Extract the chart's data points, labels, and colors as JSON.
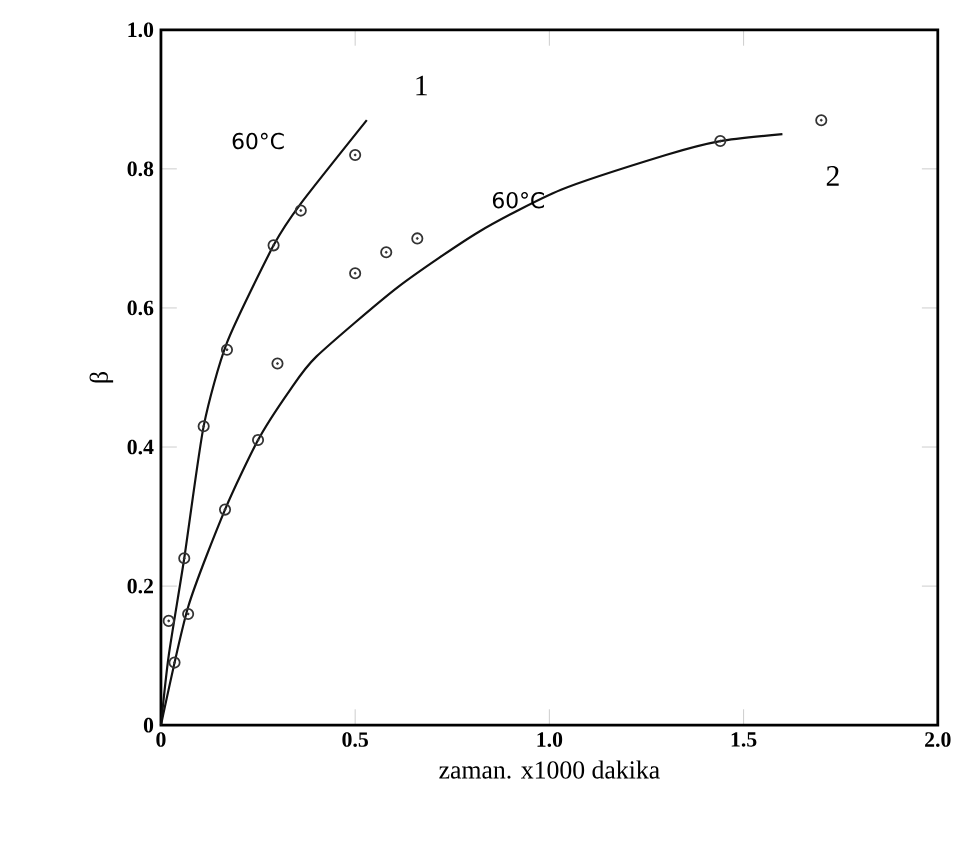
{
  "chart_data": {
    "type": "scatter",
    "xlabel": "zaman. x1000 dakika",
    "ylabel": "β",
    "xlim": [
      0,
      2
    ],
    "ylim": [
      0,
      1
    ],
    "xticks": [
      0,
      {
        "value": 0.5,
        "label": "0.5"
      },
      {
        "value": 1,
        "label": "1.0"
      },
      {
        "value": 1.5,
        "label": "1.5"
      },
      {
        "value": 2,
        "label": "2.0"
      }
    ],
    "yticks": [
      0,
      {
        "value": 0.2,
        "label": "0.2"
      },
      {
        "value": 0.4,
        "label": "0.4"
      },
      {
        "value": 0.6,
        "label": "0.6"
      },
      {
        "value": 0.8,
        "label": "0.8"
      },
      {
        "value": 1,
        "label": "1.0"
      }
    ],
    "grid": false,
    "series": [
      {
        "marker": "circle",
        "color": "#333333",
        "x": [
          0.02,
          0.035,
          0.06,
          0.11,
          0.17,
          0.29,
          0.36,
          0.5
        ],
        "values": [
          0.15,
          0.09,
          0.24,
          0.43,
          0.54,
          0.69,
          0.74,
          0.82
        ]
      },
      {
        "marker": "circle",
        "color": "#333333",
        "x": [
          0.07,
          0.165,
          0.25,
          0.3,
          0.5,
          0.58,
          0.66,
          1.44,
          1.7
        ],
        "values": [
          0.16,
          0.31,
          0.41,
          0.52,
          0.65,
          0.68,
          0.7,
          0.84,
          0.87
        ]
      },
      {
        "type": "line",
        "marker": "none",
        "color": "#111111",
        "x": [
          0,
          0.02,
          0.06,
          0.11,
          0.17,
          0.29,
          0.36,
          0.53
        ],
        "values": [
          0,
          0.1,
          0.24,
          0.43,
          0.55,
          0.69,
          0.75,
          0.87
        ]
      },
      {
        "type": "line",
        "marker": "none",
        "color": "#111111",
        "x": [
          0,
          0.07,
          0.165,
          0.25,
          0.33,
          0.4,
          0.61,
          0.82,
          1.03,
          1.3,
          1.44,
          1.6
        ],
        "values": [
          0,
          0.17,
          0.31,
          0.41,
          0.48,
          0.53,
          0.63,
          0.71,
          0.77,
          0.82,
          0.84,
          0.85
        ]
      }
    ],
    "annotations": [
      "60°C",
      {
        "text": "60°C",
        "x": 0.92,
        "y": 0.755
      },
      "1",
      "2"
    ]
  }
}
